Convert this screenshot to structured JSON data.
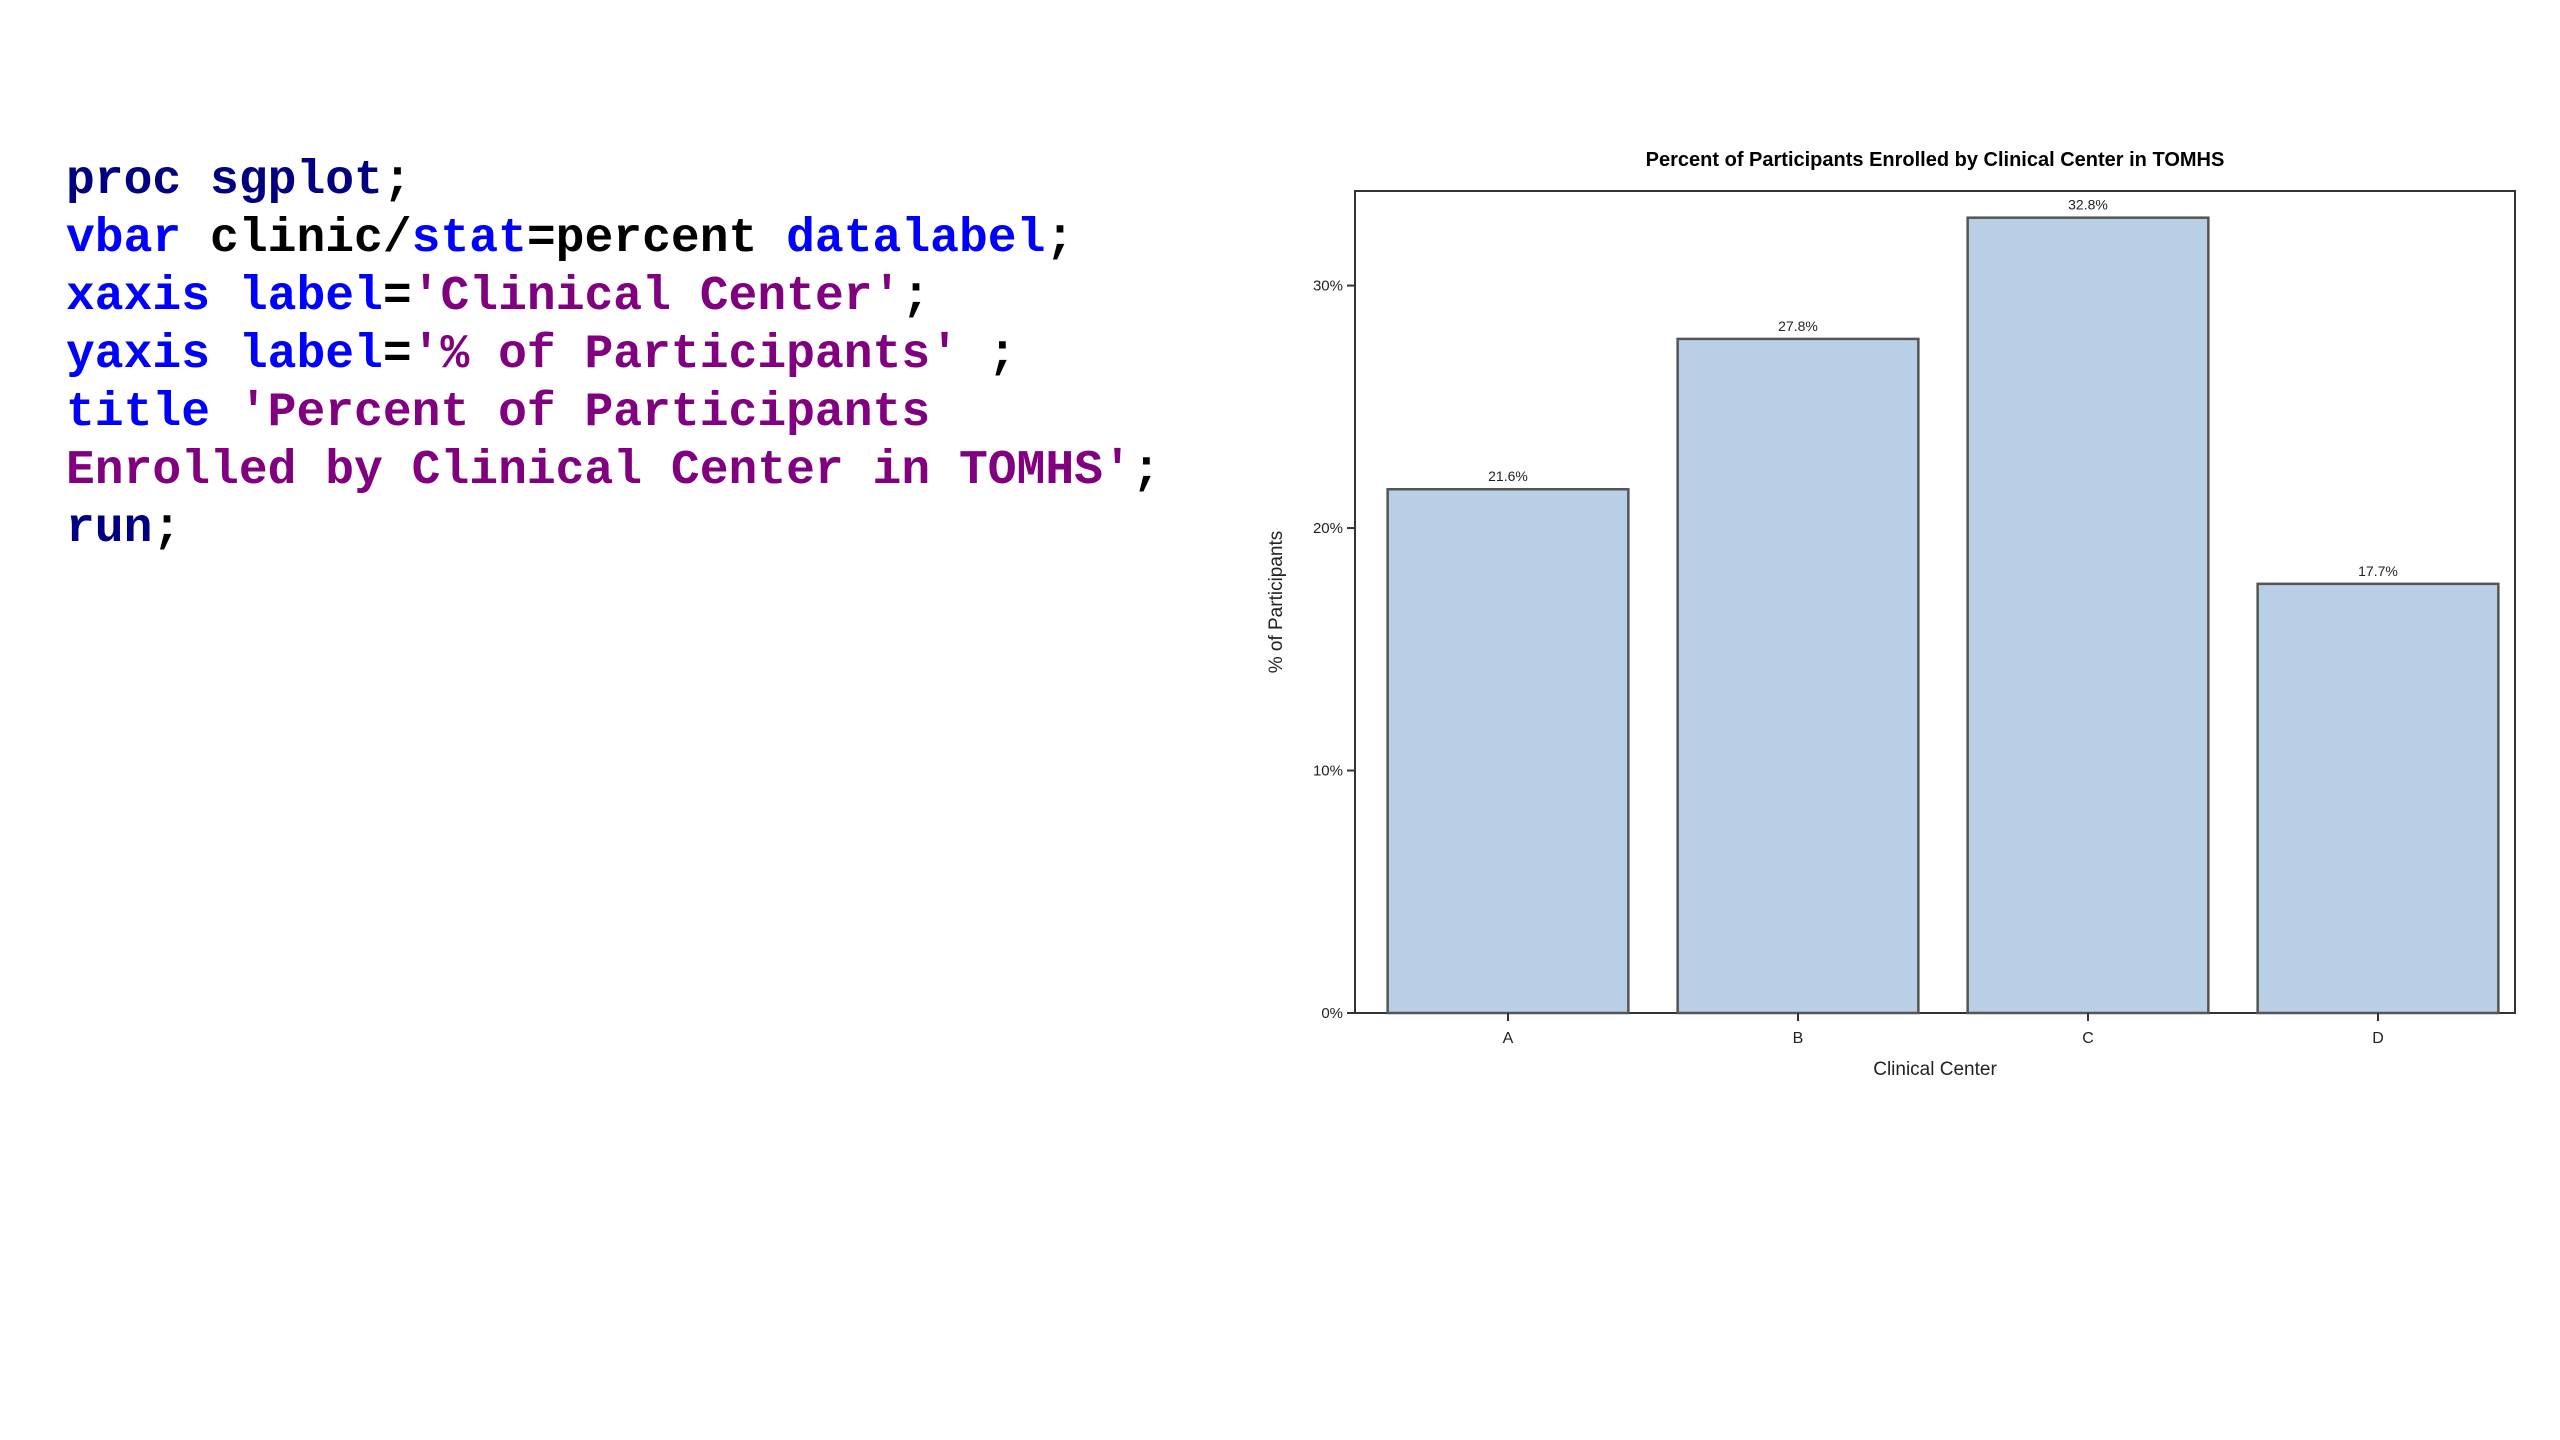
{
  "code": {
    "lines": [
      [
        "proc sgplot",
        ";"
      ],
      [
        " vbar",
        " clinic/",
        "stat",
        "=percent ",
        "datalabel",
        ";"
      ],
      [
        " xaxis label",
        "=",
        "'Clinical Center'",
        ";"
      ],
      [
        " yaxis label",
        "=",
        "'% of Participants'",
        " ;"
      ],
      [
        " title ",
        "'Percent of Participants"
      ],
      [
        " Enrolled by Clinical Center in TOMHS'",
        ";"
      ],
      [
        "run",
        ";"
      ]
    ]
  },
  "chart_data": {
    "type": "bar",
    "title": "Percent of Participants Enrolled by Clinical Center in TOMHS",
    "xlabel": "Clinical Center",
    "ylabel": "% of Participants",
    "categories": [
      "A",
      "B",
      "C",
      "D"
    ],
    "values": [
      21.6,
      27.8,
      32.8,
      17.7
    ],
    "value_labels": [
      "21.6%",
      "27.8%",
      "32.8%",
      "17.7%"
    ],
    "color": "#b9cfe6",
    "ylim": [
      0,
      33.9
    ],
    "yticks": [
      {
        "value": 0,
        "label": "0%"
      },
      {
        "value": 10,
        "label": "10%"
      },
      {
        "value": 20,
        "label": "20%"
      },
      {
        "value": 30,
        "label": "30%"
      }
    ],
    "grid": false
  }
}
